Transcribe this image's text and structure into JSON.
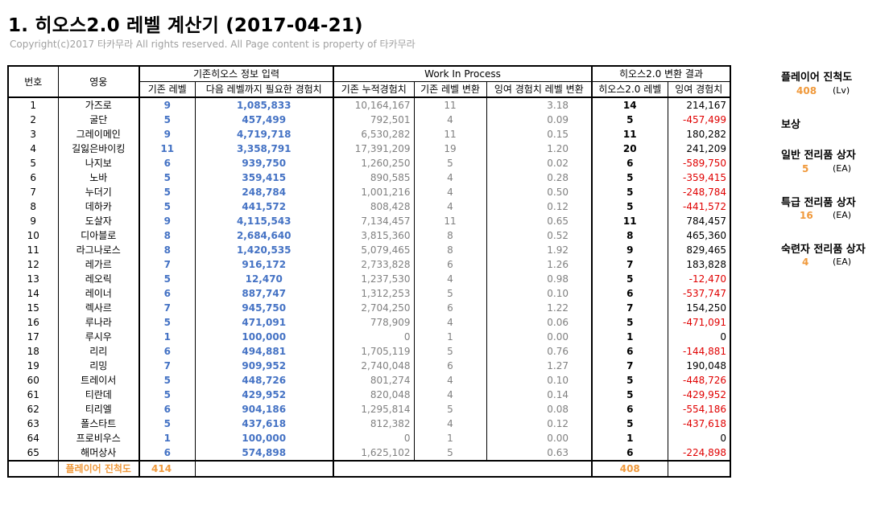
{
  "title": "1. 히오스2.0 레벨 계산기 (2017-04-21)",
  "copyright": "Copyright(c)2017 타카무라 All rights reserved. All Page content is property of 타카무라",
  "headers": {
    "no": "번호",
    "hero": "영웅",
    "group1": "기존히오스 정보 입력",
    "group2": "Work In Process",
    "group3": "히오스2.0 변환 결과",
    "level": "기존 레벨",
    "next_exp": "다음 레벨까지 필요한 경험치",
    "cum_exp": "기존 누적경험치",
    "level_conv": "기존 레벨 변환",
    "surplus_conv": "잉여 경험치 레벨 변환",
    "new_level": "히오스2.0 레벨",
    "surplus_exp": "잉여 경험치"
  },
  "rows": [
    {
      "no": "1",
      "hero": "가즈로",
      "level": "9",
      "next": "1,085,833",
      "cum": "10,164,167",
      "lconv": "11",
      "sconv": "3.18",
      "nlevel": "14",
      "surplus": "214,167",
      "neg": false
    },
    {
      "no": "2",
      "hero": "굴단",
      "level": "5",
      "next": "457,499",
      "cum": "792,501",
      "lconv": "4",
      "sconv": "0.09",
      "nlevel": "5",
      "surplus": "-457,499",
      "neg": true
    },
    {
      "no": "3",
      "hero": "그레이메인",
      "level": "9",
      "next": "4,719,718",
      "cum": "6,530,282",
      "lconv": "11",
      "sconv": "0.15",
      "nlevel": "11",
      "surplus": "180,282",
      "neg": false
    },
    {
      "no": "4",
      "hero": "길잃은바이킹",
      "level": "11",
      "next": "3,358,791",
      "cum": "17,391,209",
      "lconv": "19",
      "sconv": "1.20",
      "nlevel": "20",
      "surplus": "241,209",
      "neg": false
    },
    {
      "no": "5",
      "hero": "나지보",
      "level": "6",
      "next": "939,750",
      "cum": "1,260,250",
      "lconv": "5",
      "sconv": "0.02",
      "nlevel": "6",
      "surplus": "-589,750",
      "neg": true
    },
    {
      "no": "6",
      "hero": "노바",
      "level": "5",
      "next": "359,415",
      "cum": "890,585",
      "lconv": "4",
      "sconv": "0.28",
      "nlevel": "5",
      "surplus": "-359,415",
      "neg": true
    },
    {
      "no": "7",
      "hero": "누더기",
      "level": "5",
      "next": "248,784",
      "cum": "1,001,216",
      "lconv": "4",
      "sconv": "0.50",
      "nlevel": "5",
      "surplus": "-248,784",
      "neg": true
    },
    {
      "no": "8",
      "hero": "데하카",
      "level": "5",
      "next": "441,572",
      "cum": "808,428",
      "lconv": "4",
      "sconv": "0.12",
      "nlevel": "5",
      "surplus": "-441,572",
      "neg": true
    },
    {
      "no": "9",
      "hero": "도살자",
      "level": "9",
      "next": "4,115,543",
      "cum": "7,134,457",
      "lconv": "11",
      "sconv": "0.65",
      "nlevel": "11",
      "surplus": "784,457",
      "neg": false
    },
    {
      "no": "10",
      "hero": "디아블로",
      "level": "8",
      "next": "2,684,640",
      "cum": "3,815,360",
      "lconv": "8",
      "sconv": "0.52",
      "nlevel": "8",
      "surplus": "465,360",
      "neg": false
    },
    {
      "no": "11",
      "hero": "라그나로스",
      "level": "8",
      "next": "1,420,535",
      "cum": "5,079,465",
      "lconv": "8",
      "sconv": "1.92",
      "nlevel": "9",
      "surplus": "829,465",
      "neg": false
    },
    {
      "no": "12",
      "hero": "레가르",
      "level": "7",
      "next": "916,172",
      "cum": "2,733,828",
      "lconv": "6",
      "sconv": "1.26",
      "nlevel": "7",
      "surplus": "183,828",
      "neg": false
    },
    {
      "no": "13",
      "hero": "레오릭",
      "level": "5",
      "next": "12,470",
      "cum": "1,237,530",
      "lconv": "4",
      "sconv": "0.98",
      "nlevel": "5",
      "surplus": "-12,470",
      "neg": true
    },
    {
      "no": "14",
      "hero": "레이너",
      "level": "6",
      "next": "887,747",
      "cum": "1,312,253",
      "lconv": "5",
      "sconv": "0.10",
      "nlevel": "6",
      "surplus": "-537,747",
      "neg": true
    },
    {
      "no": "15",
      "hero": "렉사르",
      "level": "7",
      "next": "945,750",
      "cum": "2,704,250",
      "lconv": "6",
      "sconv": "1.22",
      "nlevel": "7",
      "surplus": "154,250",
      "neg": false
    },
    {
      "no": "16",
      "hero": "루나라",
      "level": "5",
      "next": "471,091",
      "cum": "778,909",
      "lconv": "4",
      "sconv": "0.06",
      "nlevel": "5",
      "surplus": "-471,091",
      "neg": true
    },
    {
      "no": "17",
      "hero": "루시우",
      "level": "1",
      "next": "100,000",
      "cum": "0",
      "lconv": "1",
      "sconv": "0.00",
      "nlevel": "1",
      "surplus": "0",
      "neg": false
    },
    {
      "no": "18",
      "hero": "리리",
      "level": "6",
      "next": "494,881",
      "cum": "1,705,119",
      "lconv": "5",
      "sconv": "0.76",
      "nlevel": "6",
      "surplus": "-144,881",
      "neg": true
    },
    {
      "no": "19",
      "hero": "리밍",
      "level": "7",
      "next": "909,952",
      "cum": "2,740,048",
      "lconv": "6",
      "sconv": "1.27",
      "nlevel": "7",
      "surplus": "190,048",
      "neg": false
    },
    {
      "no": "60",
      "hero": "트레이서",
      "level": "5",
      "next": "448,726",
      "cum": "801,274",
      "lconv": "4",
      "sconv": "0.10",
      "nlevel": "5",
      "surplus": "-448,726",
      "neg": true
    },
    {
      "no": "61",
      "hero": "티란데",
      "level": "5",
      "next": "429,952",
      "cum": "820,048",
      "lconv": "4",
      "sconv": "0.14",
      "nlevel": "5",
      "surplus": "-429,952",
      "neg": true
    },
    {
      "no": "62",
      "hero": "티리엘",
      "level": "6",
      "next": "904,186",
      "cum": "1,295,814",
      "lconv": "5",
      "sconv": "0.08",
      "nlevel": "6",
      "surplus": "-554,186",
      "neg": true
    },
    {
      "no": "63",
      "hero": "폴스타트",
      "level": "5",
      "next": "437,618",
      "cum": "812,382",
      "lconv": "4",
      "sconv": "0.12",
      "nlevel": "5",
      "surplus": "-437,618",
      "neg": true
    },
    {
      "no": "64",
      "hero": "프로비우스",
      "level": "1",
      "next": "100,000",
      "cum": "0",
      "lconv": "1",
      "sconv": "0.00",
      "nlevel": "1",
      "surplus": "0",
      "neg": false
    },
    {
      "no": "65",
      "hero": "해머상사",
      "level": "6",
      "next": "574,898",
      "cum": "1,625,102",
      "lconv": "5",
      "sconv": "0.63",
      "nlevel": "6",
      "surplus": "-224,898",
      "neg": true
    }
  ],
  "footer": {
    "label": "플레이어 진척도",
    "old_total": "414",
    "new_total": "408"
  },
  "side": {
    "progress_label": "플레이어 진척도",
    "progress_value": "408",
    "progress_unit": "(Lv)",
    "reward_label": "보상",
    "normal_label": "일반 전리품 상자",
    "normal_value": "5",
    "normal_unit": "(EA)",
    "special_label": "특급 전리품 상자",
    "special_value": "16",
    "special_unit": "(EA)",
    "expert_label": "숙련자 전리품 상자",
    "expert_value": "4",
    "expert_unit": "(EA)"
  },
  "colors": {
    "blue": "#4472c4",
    "orange": "#f0993b",
    "negative": "#e00000",
    "grey": "#808080"
  }
}
